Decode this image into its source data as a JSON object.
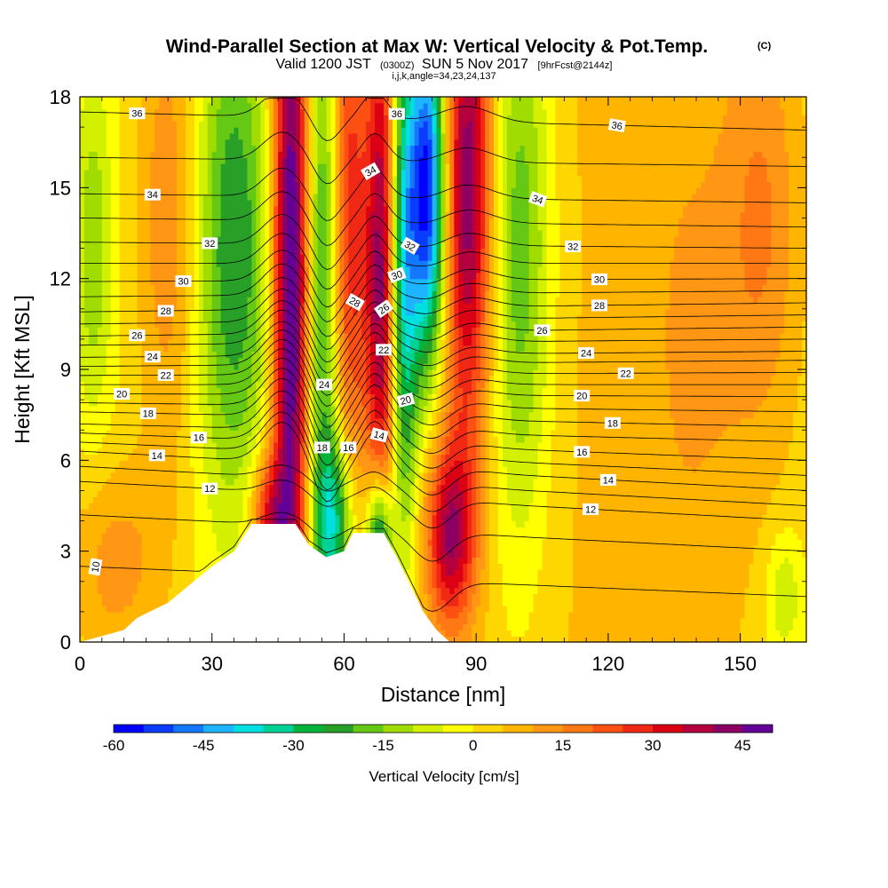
{
  "chart_data": {
    "type": "heatmap",
    "title": "Wind-Parallel Section at Max W: Vertical Velocity & Pot.Temp.",
    "title_mark": "(C)",
    "subtitle_parts": [
      "Valid 1200 JST",
      "(0300Z)",
      "SUN 5 Nov 2017",
      "[9hrFcst@2144z]"
    ],
    "subtitle2": "i,j,k,angle=34,23,24,137",
    "xlabel": "Distance [nm]",
    "ylabel": "Height [Kft MSL]",
    "xlim": [
      0,
      165
    ],
    "ylim": [
      0,
      18
    ],
    "x_ticks": [
      "0",
      "30",
      "60",
      "90",
      "120",
      "150"
    ],
    "y_ticks": [
      "0",
      "3",
      "6",
      "9",
      "12",
      "15",
      "18"
    ],
    "colorbar": {
      "title": "Vertical Velocity [cm/s]",
      "range": [
        -60,
        50
      ],
      "step": 5,
      "tick_labels": [
        "-60",
        "-45",
        "-30",
        "-15",
        "0",
        "15",
        "30",
        "45"
      ],
      "colors": [
        "#0000ff",
        "#0a3cff",
        "#1478ff",
        "#1eb4ff",
        "#00e0e0",
        "#00d296",
        "#00b43c",
        "#28a028",
        "#64c814",
        "#a0dc00",
        "#d2f000",
        "#ffff00",
        "#ffd700",
        "#ffb400",
        "#ff9614",
        "#ff7814",
        "#ff5014",
        "#f02814",
        "#dc0014",
        "#b4003c",
        "#8c0064",
        "#640096"
      ]
    },
    "terrain_kft": [
      {
        "x": 0,
        "h": 0
      },
      {
        "x": 10,
        "h": 0.4
      },
      {
        "x": 13,
        "h": 0.8
      },
      {
        "x": 20,
        "h": 1.3
      },
      {
        "x": 25,
        "h": 1.9
      },
      {
        "x": 30,
        "h": 2.5
      },
      {
        "x": 35,
        "h": 3.0
      },
      {
        "x": 39,
        "h": 3.9
      },
      {
        "x": 49,
        "h": 3.9
      },
      {
        "x": 52,
        "h": 3.2
      },
      {
        "x": 56,
        "h": 2.8
      },
      {
        "x": 60,
        "h": 3.0
      },
      {
        "x": 62,
        "h": 3.6
      },
      {
        "x": 69,
        "h": 3.6
      },
      {
        "x": 72,
        "h": 2.8
      },
      {
        "x": 75,
        "h": 1.9
      },
      {
        "x": 78,
        "h": 1.0
      },
      {
        "x": 81,
        "h": 0.4
      },
      {
        "x": 84,
        "h": 0
      },
      {
        "x": 165,
        "h": 0
      }
    ],
    "w_features": [
      {
        "x": 48,
        "z": 12,
        "amp": 55,
        "sx": 3.0,
        "sz": 9.0
      },
      {
        "x": 55,
        "z": 12,
        "amp": -25,
        "sx": 3.0,
        "sz": 9.0
      },
      {
        "x": 61,
        "z": 14,
        "amp": 28,
        "sx": 3.0,
        "sz": 7.0
      },
      {
        "x": 69,
        "z": 12,
        "amp": 48,
        "sx": 2.8,
        "sz": 7.0
      },
      {
        "x": 73,
        "z": 12,
        "amp": -45,
        "sx": 2.5,
        "sz": 6.0
      },
      {
        "x": 79,
        "z": 15,
        "amp": -60,
        "sx": 3.0,
        "sz": 4.0
      },
      {
        "x": 88,
        "z": 15,
        "amp": 42,
        "sx": 4.0,
        "sz": 6.0
      },
      {
        "x": 100,
        "z": 13,
        "amp": -22,
        "sx": 5.0,
        "sz": 7.0
      },
      {
        "x": 35,
        "z": 13,
        "amp": -25,
        "sx": 6.0,
        "sz": 6.0
      },
      {
        "x": 20,
        "z": 14,
        "amp": 14,
        "sx": 5.0,
        "sz": 6.0
      },
      {
        "x": 43,
        "z": 4,
        "amp": 30,
        "sx": 3.0,
        "sz": 1.5
      },
      {
        "x": 84,
        "z": 3.5,
        "amp": 36,
        "sx": 4.0,
        "sz": 2.2
      },
      {
        "x": 68,
        "z": 3,
        "amp": -50,
        "sx": 2.0,
        "sz": 1.8
      },
      {
        "x": 58,
        "z": 4,
        "amp": -30,
        "sx": 3.0,
        "sz": 2.0
      },
      {
        "x": 8,
        "z": 2.5,
        "amp": 12,
        "sx": 8.0,
        "sz": 2.5
      },
      {
        "x": 155,
        "z": 14,
        "amp": 12,
        "sx": 6.0,
        "sz": 5.0
      },
      {
        "x": 3,
        "z": 13,
        "amp": -14,
        "sx": 3.0,
        "sz": 4.0
      },
      {
        "x": 140,
        "z": 10,
        "amp": 6,
        "sx": 8.0,
        "sz": 6.0
      },
      {
        "x": 160,
        "z": 1.5,
        "amp": -12,
        "sx": 3.0,
        "sz": 1.5
      }
    ],
    "theta_contours": {
      "levels": [
        10,
        11,
        12,
        13,
        14,
        15,
        16,
        17,
        18,
        19,
        20,
        21,
        22,
        23,
        24,
        25,
        26,
        27,
        28,
        29,
        30,
        31,
        32,
        33,
        34,
        35,
        36
      ],
      "height_left_kft": [
        2.5,
        4.2,
        5.3,
        5.8,
        6.3,
        6.6,
        6.9,
        7.2,
        7.6,
        7.9,
        8.2,
        8.5,
        8.8,
        9.1,
        9.4,
        9.8,
        10.1,
        10.5,
        10.9,
        11.4,
        11.9,
        12.5,
        13.2,
        14.0,
        14.8,
        16.0,
        17.5
      ],
      "height_right_kft": [
        1.5,
        3.0,
        4.0,
        4.5,
        5.0,
        5.5,
        6.0,
        6.6,
        7.1,
        7.6,
        8.1,
        8.5,
        8.9,
        9.3,
        9.6,
        10.0,
        10.4,
        10.8,
        11.2,
        11.6,
        12.0,
        12.5,
        13.0,
        13.7,
        14.5,
        15.7,
        16.9
      ],
      "labels": [
        {
          "level": "10",
          "x": 3.5,
          "rot": -80
        },
        {
          "level": "12",
          "x": 29.5,
          "rot": 0
        },
        {
          "level": "12",
          "x": 116,
          "rot": 0
        },
        {
          "level": "14",
          "x": 17.5,
          "rot": 0
        },
        {
          "level": "14",
          "x": 68,
          "rot": 15
        },
        {
          "level": "14",
          "x": 120,
          "rot": 0
        },
        {
          "level": "16",
          "x": 27,
          "rot": 0
        },
        {
          "level": "16",
          "x": 61,
          "rot": 0
        },
        {
          "level": "16",
          "x": 114,
          "rot": 0
        },
        {
          "level": "18",
          "x": 15.5,
          "rot": 0
        },
        {
          "level": "18",
          "x": 55,
          "rot": 0
        },
        {
          "level": "18",
          "x": 121,
          "rot": 0
        },
        {
          "level": "20",
          "x": 9.5,
          "rot": 0
        },
        {
          "level": "20",
          "x": 74,
          "rot": -15
        },
        {
          "level": "20",
          "x": 114,
          "rot": 0
        },
        {
          "level": "22",
          "x": 19.5,
          "rot": 0
        },
        {
          "level": "22",
          "x": 69,
          "rot": 0
        },
        {
          "level": "22",
          "x": 124,
          "rot": 0
        },
        {
          "level": "24",
          "x": 16.5,
          "rot": 0
        },
        {
          "level": "24",
          "x": 55.5,
          "rot": 0
        },
        {
          "level": "24",
          "x": 115,
          "rot": 0
        },
        {
          "level": "26",
          "x": 13,
          "rot": 0
        },
        {
          "level": "26",
          "x": 105,
          "rot": 0
        },
        {
          "level": "26",
          "x": 69,
          "rot": -35
        },
        {
          "level": "28",
          "x": 19.5,
          "rot": 0
        },
        {
          "level": "28",
          "x": 62.5,
          "rot": 30
        },
        {
          "level": "28",
          "x": 118,
          "rot": 0
        },
        {
          "level": "30",
          "x": 23.5,
          "rot": 0
        },
        {
          "level": "30",
          "x": 72,
          "rot": -20
        },
        {
          "level": "30",
          "x": 118,
          "rot": 0
        },
        {
          "level": "32",
          "x": 29.5,
          "rot": 0
        },
        {
          "level": "32",
          "x": 75,
          "rot": 30
        },
        {
          "level": "32",
          "x": 112,
          "rot": 0
        },
        {
          "level": "34",
          "x": 16.5,
          "rot": 0
        },
        {
          "level": "34",
          "x": 66,
          "rot": -30
        },
        {
          "level": "34",
          "x": 104,
          "rot": 20
        },
        {
          "level": "36",
          "x": 13,
          "rot": 0
        },
        {
          "level": "36",
          "x": 72,
          "rot": 0
        },
        {
          "level": "36",
          "x": 122,
          "rot": 10
        }
      ]
    }
  }
}
